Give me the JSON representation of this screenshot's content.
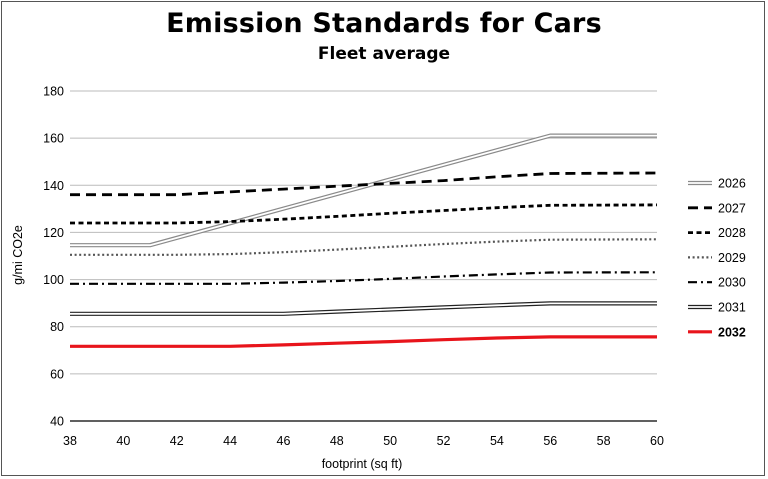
{
  "chart_data": {
    "type": "line",
    "title": "Emission Standards for Cars",
    "subtitle": "Fleet average",
    "xlabel": "footprint (sq ft)",
    "ylabel": "g/mi CO2e",
    "xlim": [
      38,
      60
    ],
    "ylim": [
      40,
      180
    ],
    "xticks": [
      38,
      40,
      42,
      44,
      46,
      48,
      50,
      52,
      54,
      56,
      58,
      60
    ],
    "yticks": [
      40,
      60,
      80,
      100,
      120,
      140,
      160,
      180
    ],
    "grid": true,
    "legend_position": "right",
    "series": [
      {
        "name": "2026",
        "style": "double-gray",
        "color": "#8a8a8a",
        "points": [
          [
            38,
            114.6
          ],
          [
            41,
            114.6
          ],
          [
            56,
            161.1
          ],
          [
            60,
            161.1
          ]
        ]
      },
      {
        "name": "2027",
        "style": "long-dash",
        "color": "#000000",
        "points": [
          [
            38,
            136
          ],
          [
            42,
            136
          ],
          [
            44,
            137.2
          ],
          [
            46,
            138.4
          ],
          [
            48,
            139.6
          ],
          [
            50,
            140.8
          ],
          [
            52,
            142
          ],
          [
            54,
            143.6
          ],
          [
            56,
            145
          ],
          [
            60,
            145.2
          ]
        ]
      },
      {
        "name": "2028",
        "style": "short-dash",
        "color": "#000000",
        "points": [
          [
            38,
            124
          ],
          [
            42,
            124
          ],
          [
            44,
            124.6
          ],
          [
            46,
            125.6
          ],
          [
            48,
            126.8
          ],
          [
            50,
            128.1
          ],
          [
            52,
            129.3
          ],
          [
            54,
            130.5
          ],
          [
            56,
            131.5
          ],
          [
            60,
            131.7
          ]
        ]
      },
      {
        "name": "2029",
        "style": "dotted",
        "color": "#555555",
        "points": [
          [
            38,
            110.5
          ],
          [
            42,
            110.5
          ],
          [
            44,
            110.8
          ],
          [
            46,
            111.6
          ],
          [
            48,
            112.7
          ],
          [
            50,
            113.9
          ],
          [
            52,
            115.1
          ],
          [
            54,
            116.1
          ],
          [
            56,
            116.9
          ],
          [
            60,
            117.1
          ]
        ]
      },
      {
        "name": "2030",
        "style": "dash-dot",
        "color": "#000000",
        "points": [
          [
            38,
            98.2
          ],
          [
            44,
            98.2
          ],
          [
            46,
            98.7
          ],
          [
            48,
            99.4
          ],
          [
            50,
            100.3
          ],
          [
            52,
            101.3
          ],
          [
            54,
            102.2
          ],
          [
            56,
            103
          ],
          [
            60,
            103.1
          ]
        ]
      },
      {
        "name": "2031",
        "style": "double-dark",
        "color": "#333333",
        "points": [
          [
            38,
            85.5
          ],
          [
            46,
            85.5
          ],
          [
            48,
            86.4
          ],
          [
            50,
            87.3
          ],
          [
            52,
            88.2
          ],
          [
            54,
            89.1
          ],
          [
            56,
            89.9
          ],
          [
            60,
            89.9
          ]
        ]
      },
      {
        "name": "2032",
        "style": "solid-red",
        "color": "#e8141b",
        "points": [
          [
            38,
            71.7
          ],
          [
            44,
            71.7
          ],
          [
            46,
            72.3
          ],
          [
            48,
            73
          ],
          [
            50,
            73.7
          ],
          [
            52,
            74.5
          ],
          [
            54,
            75.2
          ],
          [
            56,
            75.7
          ],
          [
            60,
            75.7
          ]
        ]
      }
    ]
  },
  "colors": {
    "grid": "#bbbbbb",
    "axis": "#000000",
    "highlight": "#e8141b"
  }
}
